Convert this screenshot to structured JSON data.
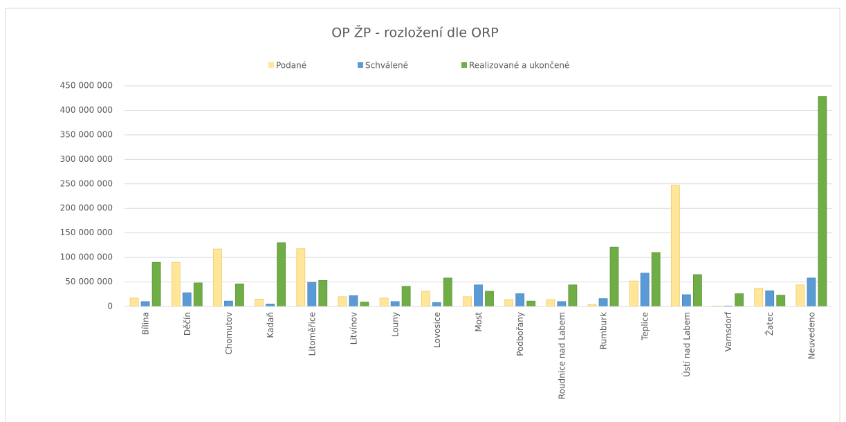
{
  "chart_data": {
    "type": "bar",
    "title": "OP ŽP - rozložení dle ORP",
    "categories": [
      "Bílina",
      "Děčín",
      "Chomutov",
      "Kadaň",
      "Litoměřice",
      "Litvínov",
      "Louny",
      "Lovosice",
      "Most",
      "Podbořany",
      "Roudnice nad Labem",
      "Rumburk",
      "Teplice",
      "Ústí nad Labem",
      "Varnsdorf",
      "Žatec",
      "Neuvedeno"
    ],
    "series": [
      {
        "name": "Podané",
        "color": "#ffe699",
        "values": [
          17000000,
          90000000,
          117000000,
          15000000,
          118000000,
          20000000,
          17000000,
          31000000,
          20000000,
          14000000,
          14000000,
          4000000,
          52000000,
          247000000,
          1000000,
          37000000,
          44000000
        ]
      },
      {
        "name": "Schválené",
        "color": "#5b9bd5",
        "values": [
          10000000,
          28000000,
          11000000,
          5000000,
          49000000,
          22000000,
          10000000,
          8000000,
          44000000,
          26000000,
          10000000,
          16000000,
          68000000,
          24000000,
          1000000,
          32000000,
          58000000
        ]
      },
      {
        "name": "Realizované a ukončené",
        "color": "#70ad47",
        "values": [
          90000000,
          48000000,
          46000000,
          130000000,
          53000000,
          9000000,
          41000000,
          58000000,
          31000000,
          11000000,
          44000000,
          121000000,
          110000000,
          65000000,
          26000000,
          23000000,
          428000000
        ]
      }
    ],
    "ylim": [
      0,
      450000000
    ],
    "yticks": [
      0,
      {
        "value": 50000000,
        "label": "50 000 000"
      },
      {
        "value": 100000000,
        "label": "100 000 000"
      },
      {
        "value": 150000000,
        "label": "150 000 000"
      },
      {
        "value": 200000000,
        "label": "200 000 000"
      },
      {
        "value": 250000000,
        "label": "250 000 000"
      },
      {
        "value": 300000000,
        "label": "300 000 000"
      },
      {
        "value": 350000000,
        "label": "350 000 000"
      },
      {
        "value": 400000000,
        "label": "400 000 000"
      },
      {
        "value": 450000000,
        "label": "450 000 000"
      }
    ],
    "grid": true,
    "legend": "top"
  }
}
